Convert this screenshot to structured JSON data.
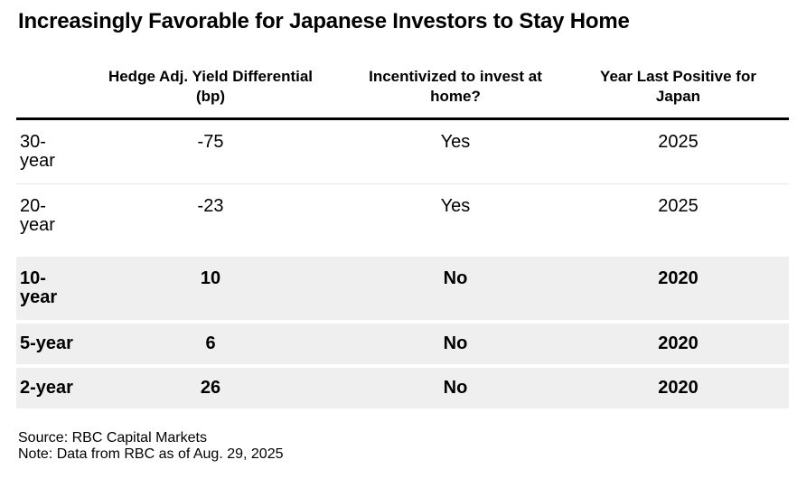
{
  "chart_data": {
    "type": "table",
    "title": "Increasingly Favorable for Japanese Investors to Stay Home",
    "columns": [
      "",
      "Hedge Adj. Yield Differential (bp)",
      "Incentivized to invest at home?",
      "Year Last Positive for Japan"
    ],
    "rows": [
      [
        "30-year",
        -75,
        "Yes",
        2025
      ],
      [
        "20-year",
        -23,
        "Yes",
        2025
      ],
      [
        "10-year",
        10,
        "No",
        2020
      ],
      [
        "5-year",
        6,
        "No",
        2020
      ],
      [
        "2-year",
        26,
        "No",
        2020
      ]
    ],
    "highlighted_rows": [
      "10-year",
      "5-year",
      "2-year"
    ],
    "source": "Source: RBC Capital Markets",
    "note": "Note: Data from RBC as of Aug. 29, 2025"
  },
  "headers": [
    {
      "line1": "",
      "line2": ""
    },
    {
      "line1": "Hedge Adj. Yield Differential",
      "line2": "(bp)"
    },
    {
      "line1": "Incentivized to invest at",
      "line2": "home?"
    },
    {
      "line1": "Year Last Positive for",
      "line2": "Japan"
    }
  ],
  "colors": {
    "highlight_row_bg": "#efefef",
    "header_rule": "#000000",
    "row_divider": "#e6e6e6",
    "text": "#000000",
    "background": "#ffffff"
  }
}
